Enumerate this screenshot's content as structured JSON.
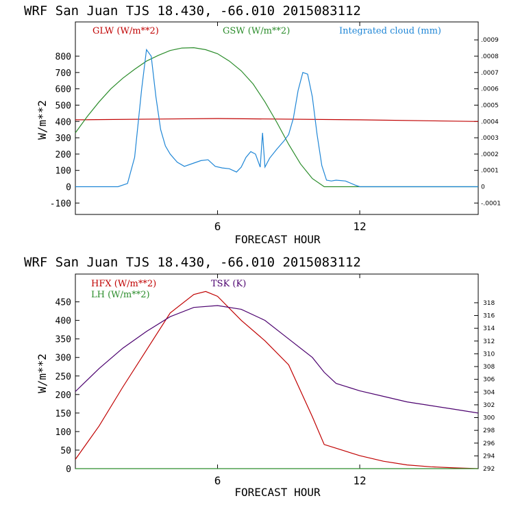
{
  "chart_data": [
    {
      "type": "line",
      "title": "WRF  San Juan TJS  18.430, -66.010  2015083112",
      "xlabel": "FORECAST HOUR",
      "ylabel": "W/m**2",
      "xlim": [
        0,
        17
      ],
      "x_ticks": [
        6,
        12
      ],
      "ylim": [
        -170,
        1010
      ],
      "y_ticks": [
        -100,
        0,
        100,
        200,
        300,
        400,
        500,
        600,
        700,
        800
      ],
      "y2_ticks": [
        {
          "value": -100,
          "label": "-.0001"
        },
        {
          "value": 0,
          "label": "0"
        },
        {
          "value": 100,
          "label": ".0001"
        },
        {
          "value": 200,
          "label": ".0002"
        },
        {
          "value": 300,
          "label": ".0003"
        },
        {
          "value": 400,
          "label": ".0004"
        },
        {
          "value": 500,
          "label": ".0005"
        },
        {
          "value": 600,
          "label": ".0006"
        },
        {
          "value": 700,
          "label": ".0007"
        },
        {
          "value": 800,
          "label": ".0008"
        },
        {
          "value": 900,
          "label": ".0009"
        }
      ],
      "series": [
        {
          "name": "GLW (W/m**2)",
          "color": "#c00000",
          "x": [
            0,
            6,
            12,
            17
          ],
          "y": [
            410,
            418,
            410,
            400
          ]
        },
        {
          "name": "GSW (W/m**2)",
          "color": "#2a8c2a",
          "x": [
            0,
            0.5,
            1,
            1.5,
            2,
            2.5,
            3,
            3.5,
            4,
            4.5,
            5,
            5.5,
            6,
            6.5,
            7,
            7.5,
            8,
            8.5,
            9,
            9.5,
            10,
            10.5,
            17
          ],
          "y": [
            330,
            430,
            520,
            600,
            665,
            720,
            770,
            805,
            835,
            850,
            852,
            840,
            815,
            770,
            710,
            630,
            520,
            395,
            260,
            140,
            50,
            0,
            0
          ]
        },
        {
          "name": "Integrated cloud (mm)",
          "color": "#1f86d6",
          "x": [
            0,
            1.8,
            2.2,
            2.5,
            2.8,
            3.0,
            3.2,
            3.4,
            3.6,
            3.8,
            4.0,
            4.3,
            4.6,
            5.0,
            5.3,
            5.6,
            5.9,
            6.2,
            6.5,
            6.8,
            7.0,
            7.2,
            7.4,
            7.6,
            7.8,
            7.9,
            8.0,
            8.2,
            8.5,
            8.8,
            9.0,
            9.2,
            9.4,
            9.6,
            9.8,
            10.0,
            10.2,
            10.4,
            10.6,
            10.8,
            11.0,
            11.4,
            11.8,
            12.0,
            17
          ],
          "y": [
            0,
            0,
            20,
            180,
            600,
            840,
            800,
            550,
            350,
            250,
            200,
            150,
            125,
            145,
            160,
            165,
            125,
            115,
            110,
            90,
            120,
            180,
            215,
            200,
            120,
            330,
            120,
            175,
            230,
            280,
            320,
            420,
            590,
            700,
            690,
            550,
            320,
            130,
            40,
            35,
            40,
            35,
            10,
            0,
            0
          ]
        }
      ]
    },
    {
      "type": "line",
      "title": "WRF  San Juan TJS  18.430, -66.010  2015083112",
      "xlabel": "FORECAST HOUR",
      "ylabel": "W/m**2",
      "xlim": [
        0,
        17
      ],
      "x_ticks": [
        6,
        12
      ],
      "ylim": [
        0,
        525
      ],
      "y_ticks": [
        0,
        50,
        100,
        150,
        200,
        250,
        300,
        350,
        400,
        450
      ],
      "y2lim": [
        292,
        322.5
      ],
      "y2_ticks": [
        292,
        294,
        296,
        298,
        300,
        302,
        304,
        306,
        308,
        310,
        312,
        314,
        316,
        318
      ],
      "series": [
        {
          "name": "HFX (W/m**2)",
          "color": "#c00000",
          "x": [
            0,
            1,
            2,
            3,
            4,
            5,
            5.5,
            6,
            7,
            8,
            9,
            10,
            10.5,
            11,
            12,
            13,
            14,
            15,
            16,
            17
          ],
          "y": [
            25,
            115,
            220,
            320,
            420,
            470,
            478,
            465,
            400,
            345,
            280,
            140,
            65,
            55,
            35,
            20,
            10,
            5,
            2,
            0
          ]
        },
        {
          "name": "LH (W/m**2)",
          "color": "#2a8c2a",
          "x": [
            0,
            17
          ],
          "y": [
            0,
            0
          ]
        },
        {
          "name": "TSK (K)",
          "color": "#4b006e",
          "x": [
            0,
            1,
            2,
            3,
            4,
            5,
            6,
            7,
            8,
            9,
            10,
            10.5,
            11,
            12,
            13,
            14,
            15,
            16,
            17
          ],
          "y": [
            208,
            270,
            325,
            370,
            410,
            435,
            440,
            430,
            400,
            350,
            300,
            260,
            230,
            210,
            195,
            180,
            170,
            160,
            150
          ]
        }
      ]
    }
  ]
}
